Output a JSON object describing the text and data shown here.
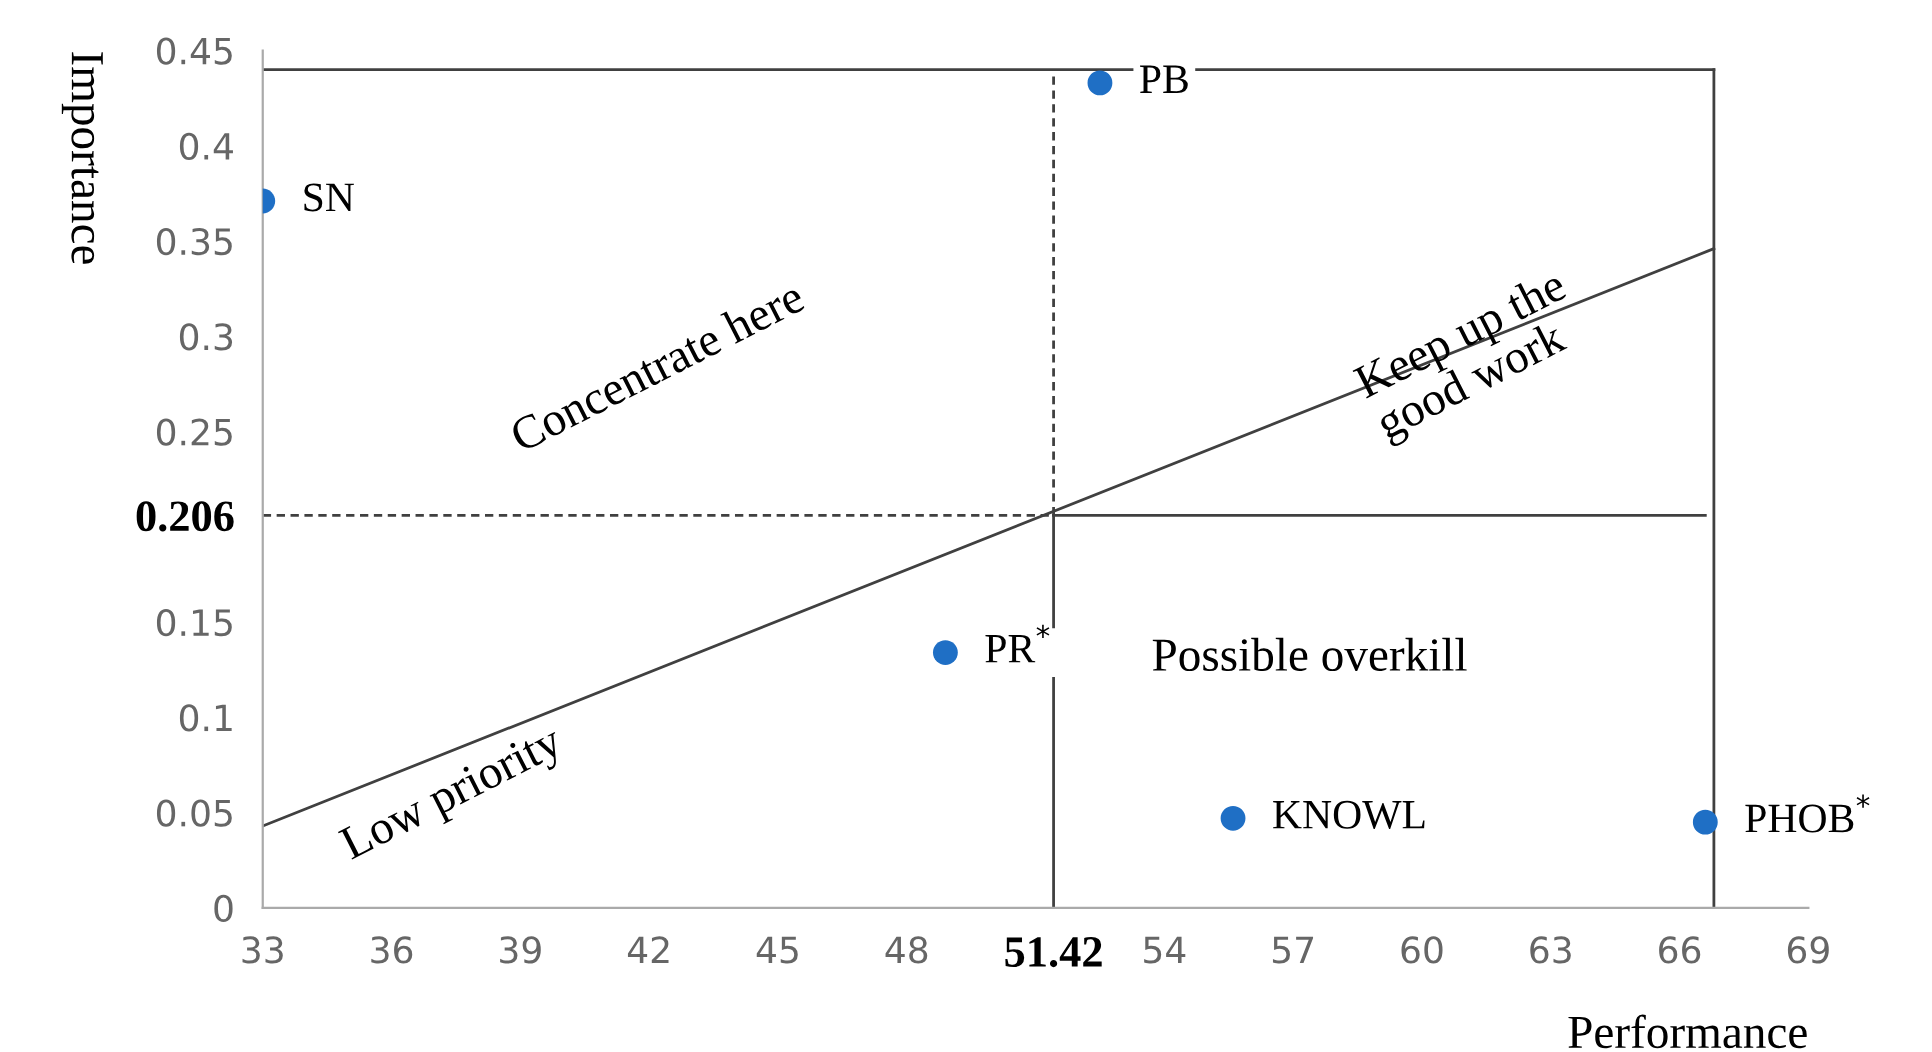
{
  "chart_data": {
    "type": "scatter",
    "xlabel": "Performance",
    "ylabel": "Importance",
    "xlim": [
      33,
      69
    ],
    "ylim": [
      0,
      0.45
    ],
    "xticks": [
      33,
      36,
      39,
      42,
      45,
      48,
      {
        "value": 51.42,
        "label": "51.42"
      },
      54,
      57,
      60,
      63,
      66,
      69
    ],
    "yticks": [
      0,
      0.05,
      0.1,
      0.15,
      {
        "value": 0.206,
        "label": "0.206"
      },
      0.25,
      0.3,
      0.35,
      0.4,
      0.45
    ],
    "grid": false,
    "series": [
      {
        "marker": "circle",
        "color": "#1f6fc5",
        "x": [
          33,
          52.5,
          48.9,
          55.6,
          66.6
        ],
        "values": [
          0.371,
          0.433,
          0.134,
          0.047,
          0.045
        ]
      },
      {
        "type": "line",
        "color": "#404040",
        "line_style": "solid",
        "x": [
          33,
          66.8
        ],
        "values": [
          0.043,
          0.346
        ]
      },
      {
        "type": "line",
        "color": "#404040",
        "line_style": "solid",
        "x": [
          33,
          66.8
        ],
        "values": [
          0.44,
          0.44
        ]
      },
      {
        "type": "line",
        "color": "#404040",
        "line_style": "solid",
        "x": [
          66.8,
          66.8
        ],
        "values": [
          0.44,
          0
        ]
      },
      {
        "type": "line",
        "color": "#404040",
        "line_style": "solid",
        "x": [
          51.42,
          51.42
        ],
        "values": [
          0,
          0.206
        ]
      },
      {
        "type": "line",
        "color": "#404040",
        "line_style": "solid",
        "x": [
          51.42,
          66.6
        ],
        "values": [
          0.206,
          0.206
        ]
      },
      {
        "type": "line",
        "color": "#404040",
        "line_style": "dashed",
        "x": [
          51.42,
          51.42
        ],
        "values": [
          0.206,
          0.44
        ]
      },
      {
        "type": "line",
        "color": "#404040",
        "line_style": "dashed",
        "x": [
          33,
          51.42
        ],
        "values": [
          0.206,
          0.206
        ]
      }
    ],
    "annotations": [
      {
        "text": "SN",
        "x": 33,
        "y": 0.371
      },
      {
        "text": "PB",
        "x": 52.5,
        "y": 0.433
      },
      {
        "text": "PR$^{*}$",
        "x": 48.9,
        "y": 0.134
      },
      {
        "text": "KNOWL",
        "x": 55.6,
        "y": 0.047
      },
      {
        "text": "PHOB$^{*}$",
        "x": 66.6,
        "y": 0.045
      },
      "Concentrate here",
      "Keep up the\ngood work",
      "Possible overkill",
      "Low priority"
    ]
  }
}
